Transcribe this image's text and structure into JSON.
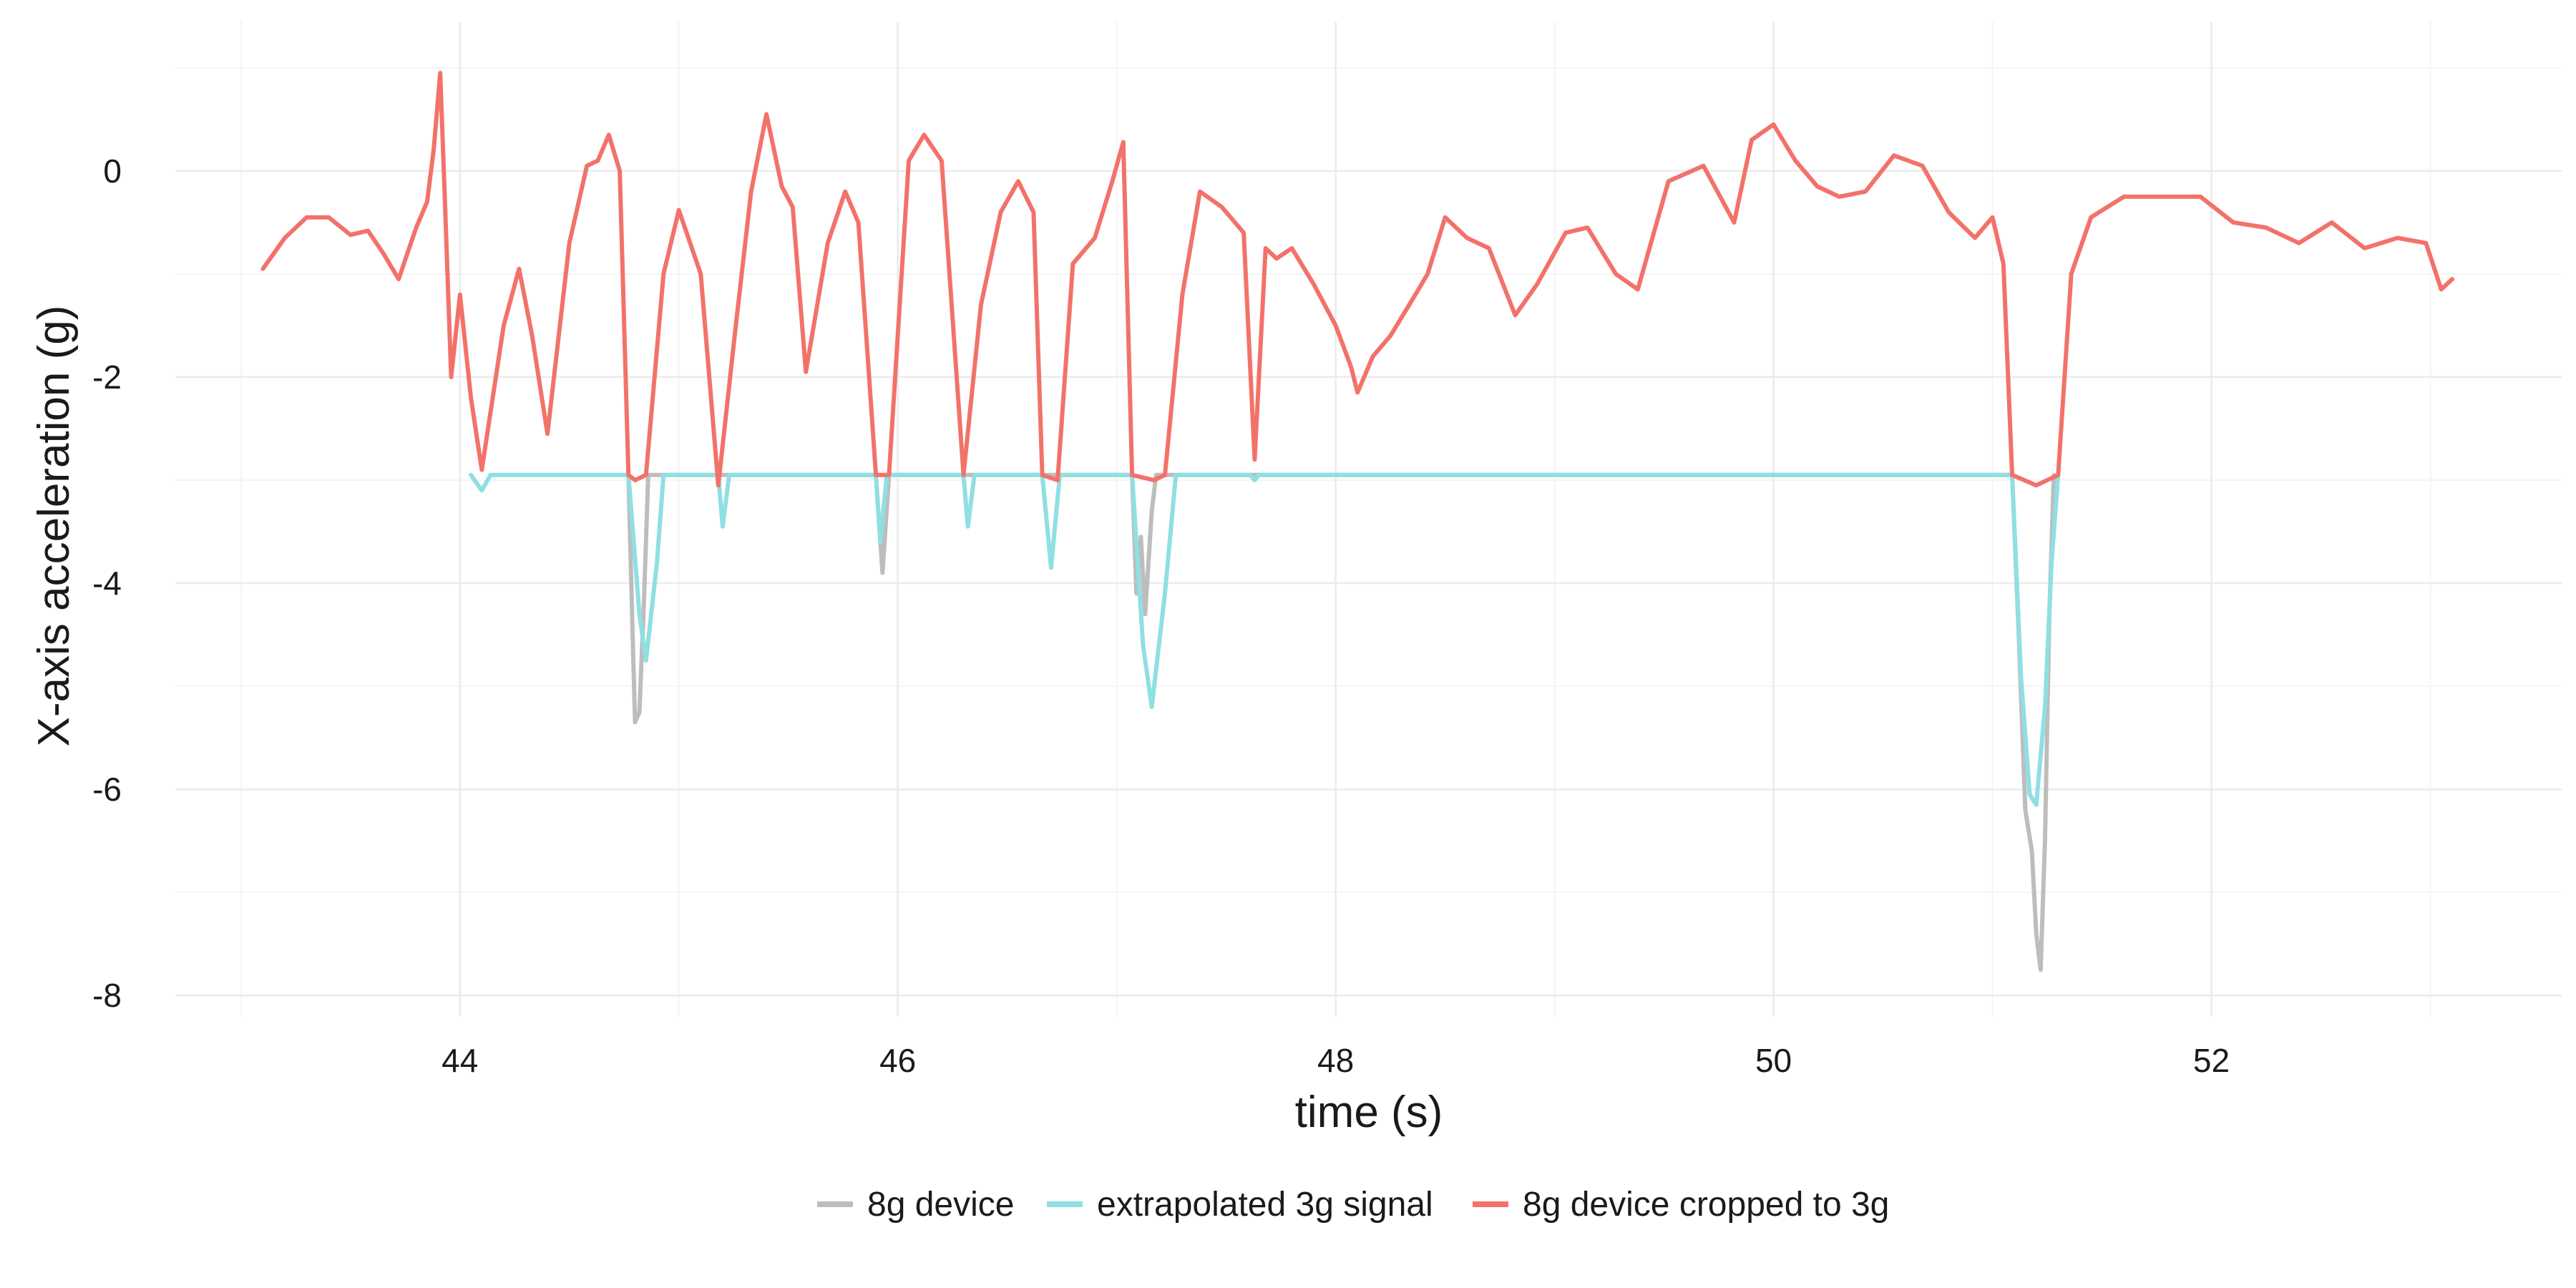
{
  "chart_data": {
    "type": "line",
    "xlabel": "time (s)",
    "ylabel": "X-axis acceleration (g)",
    "xlim": [
      42.7,
      53.6
    ],
    "ylim": [
      -8.2,
      1.45
    ],
    "xticks": [
      44,
      46,
      48,
      50,
      52
    ],
    "xtick_labels": [
      "44",
      "46",
      "48",
      "50",
      "52"
    ],
    "xminor": [
      43,
      45,
      47,
      49,
      51,
      53
    ],
    "yticks": [
      -8,
      -6,
      -4,
      -2,
      0
    ],
    "ytick_labels": [
      "-8",
      "-6",
      "-4",
      "-2",
      "0"
    ],
    "yminor": [
      -7,
      -5,
      -3,
      -1,
      1
    ],
    "grid": true,
    "legend_position": "bottom",
    "series": [
      {
        "name": "8g device",
        "color": "#bdbdbd",
        "points": [
          [
            44.77,
            -2.95
          ],
          [
            44.79,
            -4.6
          ],
          [
            44.8,
            -5.35
          ],
          [
            44.82,
            -5.25
          ],
          [
            44.84,
            -4.2
          ],
          [
            44.86,
            -2.95
          ],
          [
            45.9,
            -2.95
          ],
          [
            45.93,
            -3.9
          ],
          [
            45.96,
            -2.95
          ],
          [
            47.07,
            -2.95
          ],
          [
            47.09,
            -4.1
          ],
          [
            47.11,
            -3.55
          ],
          [
            47.13,
            -4.3
          ],
          [
            47.16,
            -3.3
          ],
          [
            47.18,
            -2.95
          ],
          [
            51.09,
            -2.95
          ],
          [
            51.12,
            -4.5
          ],
          [
            51.15,
            -6.2
          ],
          [
            51.18,
            -6.6
          ],
          [
            51.2,
            -7.4
          ],
          [
            51.22,
            -7.75
          ],
          [
            51.24,
            -6.5
          ],
          [
            51.26,
            -4.3
          ],
          [
            51.28,
            -2.95
          ]
        ]
      },
      {
        "name": "extrapolated 3g signal",
        "color": "#8fdfe3",
        "points": [
          [
            44.05,
            -2.95
          ],
          [
            44.1,
            -3.1
          ],
          [
            44.14,
            -2.95
          ],
          [
            44.77,
            -2.95
          ],
          [
            44.82,
            -4.3
          ],
          [
            44.85,
            -4.75
          ],
          [
            44.9,
            -3.8
          ],
          [
            44.93,
            -2.95
          ],
          [
            45.18,
            -2.95
          ],
          [
            45.2,
            -3.45
          ],
          [
            45.23,
            -2.95
          ],
          [
            45.9,
            -2.95
          ],
          [
            45.92,
            -3.6
          ],
          [
            45.95,
            -2.95
          ],
          [
            46.3,
            -2.95
          ],
          [
            46.32,
            -3.45
          ],
          [
            46.35,
            -2.95
          ],
          [
            46.66,
            -2.95
          ],
          [
            46.7,
            -3.85
          ],
          [
            46.74,
            -2.95
          ],
          [
            47.07,
            -2.95
          ],
          [
            47.12,
            -4.6
          ],
          [
            47.16,
            -5.2
          ],
          [
            47.22,
            -4.1
          ],
          [
            47.27,
            -2.95
          ],
          [
            47.61,
            -2.95
          ],
          [
            47.63,
            -3.0
          ],
          [
            47.65,
            -2.95
          ],
          [
            51.09,
            -2.95
          ],
          [
            51.13,
            -4.9
          ],
          [
            51.17,
            -6.05
          ],
          [
            51.2,
            -6.15
          ],
          [
            51.24,
            -5.2
          ],
          [
            51.27,
            -3.8
          ],
          [
            51.3,
            -2.95
          ]
        ]
      },
      {
        "name": "8g device cropped to 3g",
        "color": "#f2726a",
        "points": [
          [
            43.1,
            -0.95
          ],
          [
            43.2,
            -0.65
          ],
          [
            43.3,
            -0.45
          ],
          [
            43.4,
            -0.45
          ],
          [
            43.5,
            -0.62
          ],
          [
            43.58,
            -0.58
          ],
          [
            43.65,
            -0.8
          ],
          [
            43.72,
            -1.05
          ],
          [
            43.8,
            -0.55
          ],
          [
            43.85,
            -0.3
          ],
          [
            43.88,
            0.2
          ],
          [
            43.91,
            0.95
          ],
          [
            43.93,
            -0.2
          ],
          [
            43.96,
            -2.0
          ],
          [
            44.0,
            -1.2
          ],
          [
            44.05,
            -2.2
          ],
          [
            44.1,
            -2.9
          ],
          [
            44.2,
            -1.5
          ],
          [
            44.27,
            -0.95
          ],
          [
            44.33,
            -1.6
          ],
          [
            44.4,
            -2.55
          ],
          [
            44.5,
            -0.7
          ],
          [
            44.58,
            0.05
          ],
          [
            44.63,
            0.1
          ],
          [
            44.68,
            0.35
          ],
          [
            44.73,
            0.0
          ],
          [
            44.77,
            -2.95
          ],
          [
            44.8,
            -3.0
          ],
          [
            44.85,
            -2.95
          ],
          [
            44.93,
            -1.0
          ],
          [
            45.0,
            -0.38
          ],
          [
            45.1,
            -1.0
          ],
          [
            45.18,
            -3.05
          ],
          [
            45.26,
            -1.5
          ],
          [
            45.33,
            -0.2
          ],
          [
            45.4,
            0.55
          ],
          [
            45.47,
            -0.15
          ],
          [
            45.52,
            -0.35
          ],
          [
            45.58,
            -1.95
          ],
          [
            45.68,
            -0.7
          ],
          [
            45.76,
            -0.2
          ],
          [
            45.82,
            -0.5
          ],
          [
            45.9,
            -2.95
          ],
          [
            45.96,
            -2.95
          ],
          [
            46.05,
            0.1
          ],
          [
            46.12,
            0.35
          ],
          [
            46.2,
            0.1
          ],
          [
            46.3,
            -2.95
          ],
          [
            46.38,
            -1.3
          ],
          [
            46.47,
            -0.4
          ],
          [
            46.55,
            -0.1
          ],
          [
            46.62,
            -0.4
          ],
          [
            46.66,
            -2.95
          ],
          [
            46.73,
            -3.0
          ],
          [
            46.8,
            -0.9
          ],
          [
            46.9,
            -0.65
          ],
          [
            46.98,
            -0.1
          ],
          [
            47.03,
            0.28
          ],
          [
            47.07,
            -2.95
          ],
          [
            47.17,
            -3.0
          ],
          [
            47.22,
            -2.95
          ],
          [
            47.3,
            -1.2
          ],
          [
            47.38,
            -0.2
          ],
          [
            47.48,
            -0.35
          ],
          [
            47.58,
            -0.6
          ],
          [
            47.63,
            -2.8
          ],
          [
            47.68,
            -0.75
          ],
          [
            47.73,
            -0.85
          ],
          [
            47.8,
            -0.75
          ],
          [
            47.9,
            -1.1
          ],
          [
            48.0,
            -1.5
          ],
          [
            48.07,
            -1.9
          ],
          [
            48.1,
            -2.15
          ],
          [
            48.17,
            -1.8
          ],
          [
            48.25,
            -1.6
          ],
          [
            48.35,
            -1.25
          ],
          [
            48.42,
            -1.0
          ],
          [
            48.5,
            -0.45
          ],
          [
            48.6,
            -0.65
          ],
          [
            48.7,
            -0.75
          ],
          [
            48.82,
            -1.4
          ],
          [
            48.92,
            -1.1
          ],
          [
            49.05,
            -0.6
          ],
          [
            49.15,
            -0.55
          ],
          [
            49.28,
            -1.0
          ],
          [
            49.38,
            -1.15
          ],
          [
            49.52,
            -0.1
          ],
          [
            49.68,
            0.05
          ],
          [
            49.82,
            -0.5
          ],
          [
            49.9,
            0.3
          ],
          [
            50.0,
            0.45
          ],
          [
            50.1,
            0.1
          ],
          [
            50.2,
            -0.15
          ],
          [
            50.3,
            -0.25
          ],
          [
            50.42,
            -0.2
          ],
          [
            50.55,
            0.15
          ],
          [
            50.68,
            0.05
          ],
          [
            50.8,
            -0.4
          ],
          [
            50.92,
            -0.65
          ],
          [
            51.0,
            -0.45
          ],
          [
            51.05,
            -0.9
          ],
          [
            51.09,
            -2.95
          ],
          [
            51.2,
            -3.05
          ],
          [
            51.3,
            -2.95
          ],
          [
            51.36,
            -1.0
          ],
          [
            51.45,
            -0.45
          ],
          [
            51.6,
            -0.25
          ],
          [
            51.75,
            -0.25
          ],
          [
            51.95,
            -0.25
          ],
          [
            52.1,
            -0.5
          ],
          [
            52.25,
            -0.55
          ],
          [
            52.4,
            -0.7
          ],
          [
            52.55,
            -0.5
          ],
          [
            52.7,
            -0.75
          ],
          [
            52.85,
            -0.65
          ],
          [
            52.98,
            -0.7
          ],
          [
            53.05,
            -1.15
          ],
          [
            53.1,
            -1.05
          ]
        ]
      }
    ]
  }
}
